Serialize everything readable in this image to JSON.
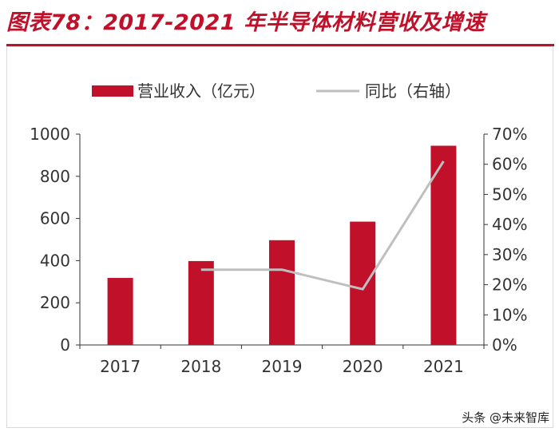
{
  "title": "图表78：2017-2021 年半导体材料营收及增速",
  "footer": {
    "source": "头条 @未来智库"
  },
  "chart_data": {
    "type": "bar",
    "categories": [
      "2017",
      "2018",
      "2019",
      "2020",
      "2021"
    ],
    "series": [
      {
        "name": "营业收入（亿元）",
        "type": "bar",
        "axis": "left",
        "color": "#c0102a",
        "values": [
          318,
          398,
          497,
          585,
          945
        ]
      },
      {
        "name": "同比（右轴）",
        "type": "line",
        "axis": "right",
        "color": "#bfbfbf",
        "values": [
          null,
          25,
          25,
          18.5,
          61
        ]
      }
    ],
    "y_left": {
      "min": 0,
      "max": 1000,
      "ticks": [
        0,
        200,
        400,
        600,
        800,
        1000
      ]
    },
    "y_right": {
      "min": 0,
      "max": 70,
      "ticks": [
        "0%",
        "10%",
        "20%",
        "30%",
        "40%",
        "50%",
        "60%",
        "70%"
      ]
    },
    "legend_position": "top",
    "grid": false
  }
}
